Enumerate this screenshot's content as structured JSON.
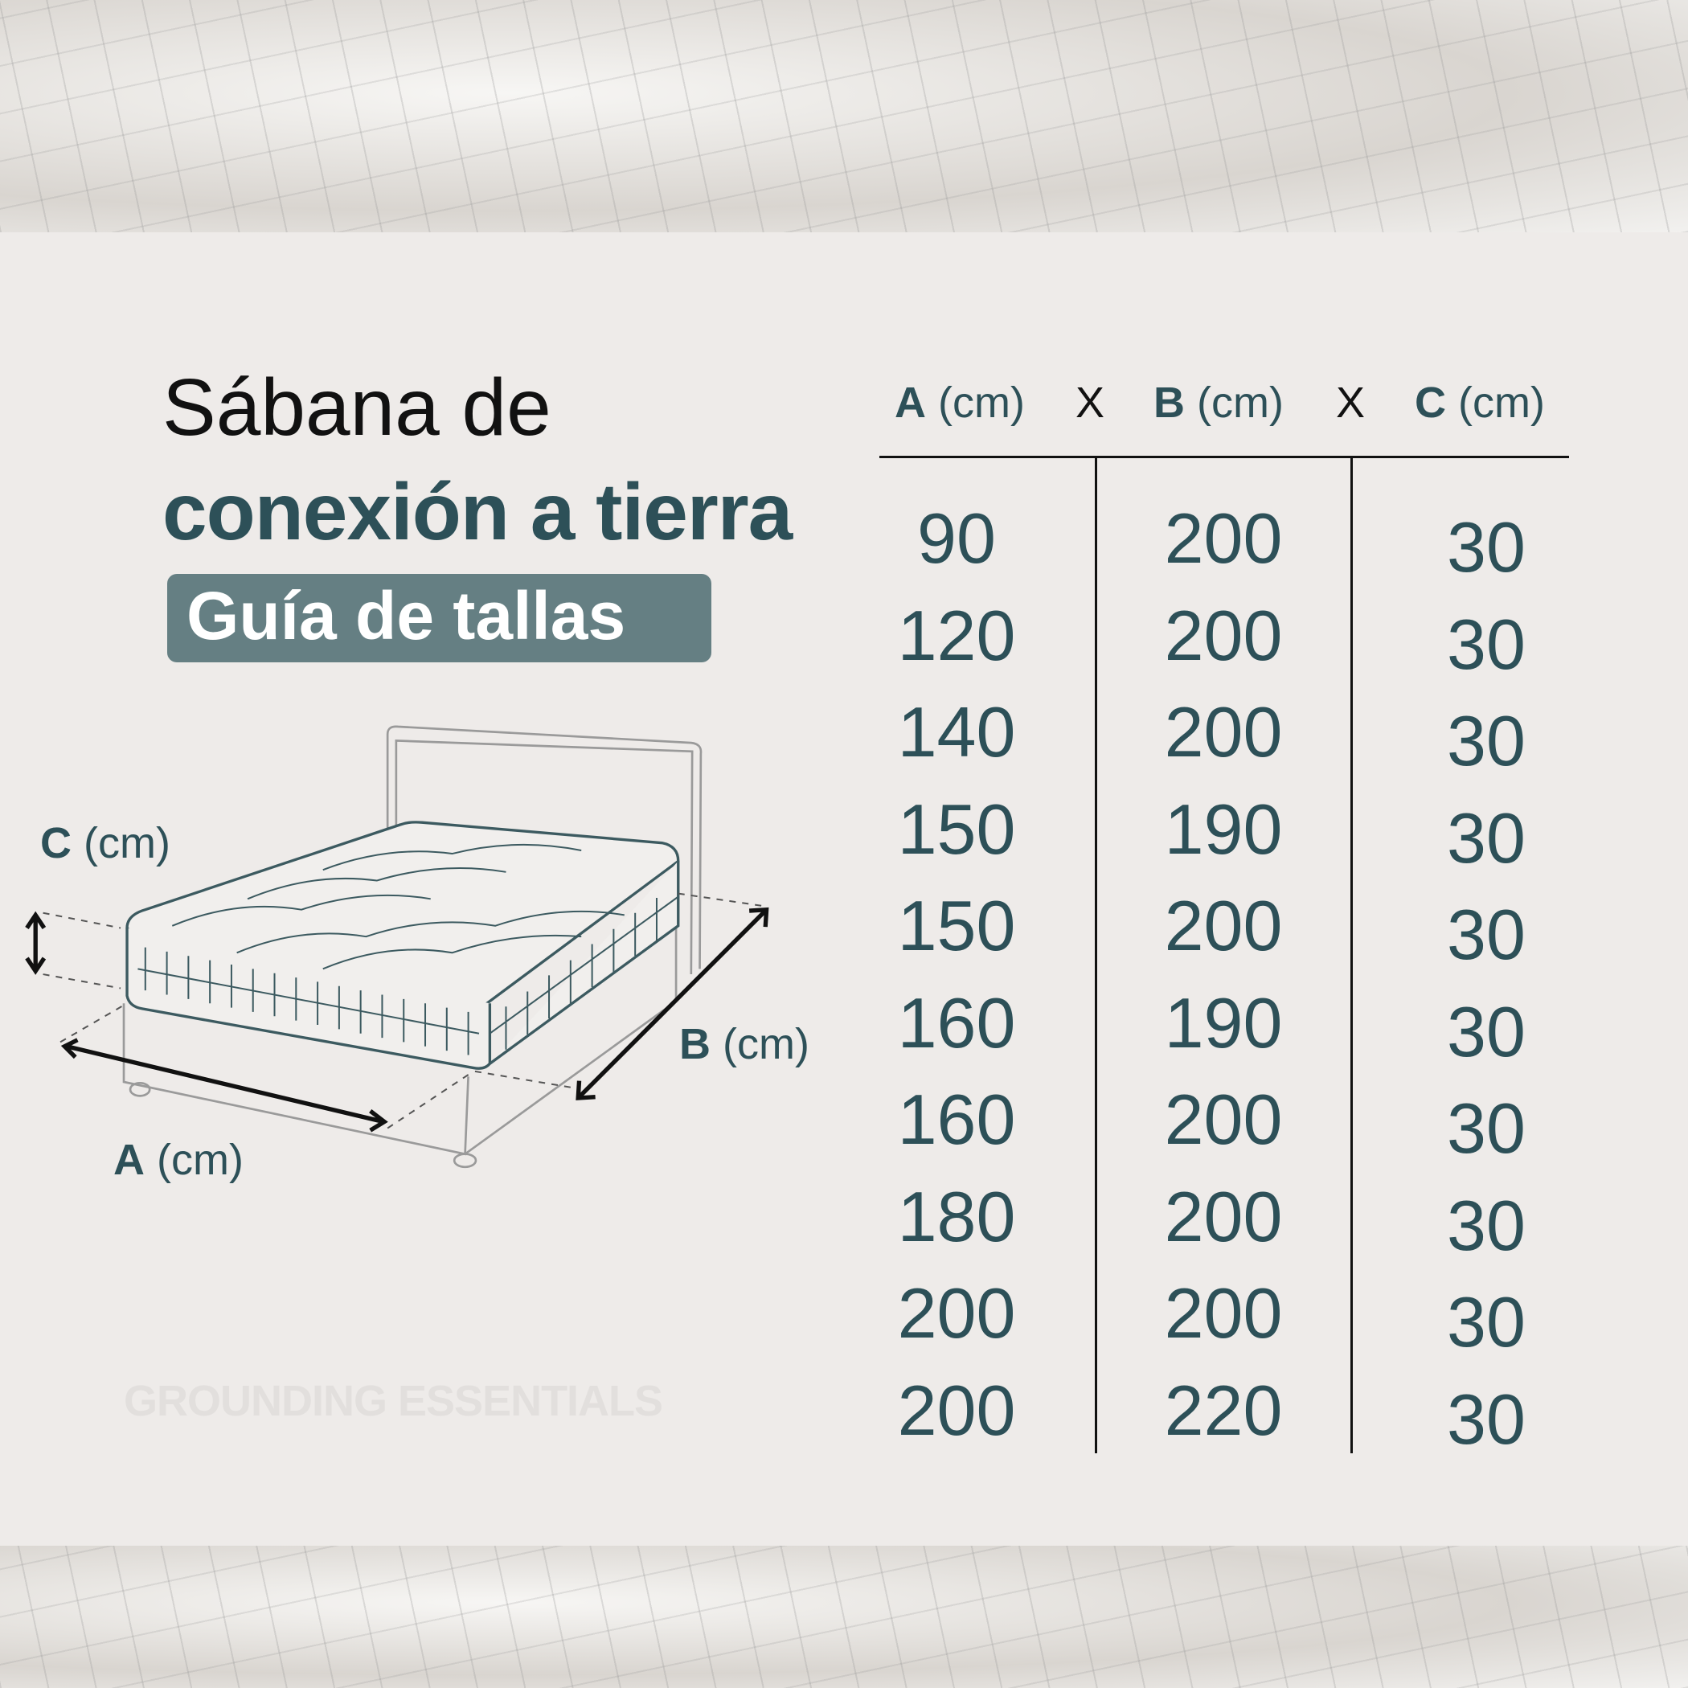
{
  "title": {
    "line1": "Sábana de",
    "line2": "conexión a tierra",
    "badge": "Guía de tallas"
  },
  "colors": {
    "accent": "#2d5058",
    "badge": "#657f83",
    "panel": "#eeebe9"
  },
  "table": {
    "headers": [
      {
        "letter": "A",
        "unit": "(cm)"
      },
      {
        "letter": "B",
        "unit": "(cm)"
      },
      {
        "letter": "C",
        "unit": "(cm)"
      }
    ],
    "separator": "X",
    "rows": [
      [
        "90",
        "200",
        "30"
      ],
      [
        "120",
        "200",
        "30"
      ],
      [
        "140",
        "200",
        "30"
      ],
      [
        "150",
        "190",
        "30"
      ],
      [
        "150",
        "200",
        "30"
      ],
      [
        "160",
        "190",
        "30"
      ],
      [
        "160",
        "200",
        "30"
      ],
      [
        "180",
        "200",
        "30"
      ],
      [
        "200",
        "200",
        "30"
      ],
      [
        "200",
        "220",
        "30"
      ]
    ]
  },
  "diagram": {
    "labels": {
      "c": {
        "letter": "C",
        "unit": "(cm)"
      },
      "b": {
        "letter": "B",
        "unit": "(cm)"
      },
      "a": {
        "letter": "A",
        "unit": "(cm)"
      }
    }
  },
  "watermark": "GROUNDING ESSENTIALS"
}
